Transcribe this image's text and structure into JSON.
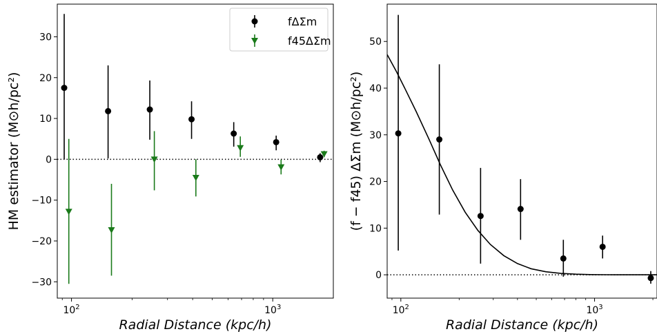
{
  "chart_data": [
    {
      "type": "scatter",
      "xlabel": "Radial Distance (kpc/h)",
      "ylabel": "HM estimator (M⊙h/pc²)",
      "xscale": "log",
      "xlim": [
        85,
        2000
      ],
      "ylim": [
        -34,
        38
      ],
      "x_ticks": [
        {
          "value": 100,
          "label": "10²"
        },
        {
          "value": 1000,
          "label": "10³"
        }
      ],
      "y_ticks": [
        -30,
        -20,
        -10,
        0,
        10,
        20,
        30
      ],
      "reference_line": {
        "y": 0,
        "style": "dotted"
      },
      "legend": {
        "position": "top-right"
      },
      "series": [
        {
          "name": "fΔΣm",
          "color": "#000000",
          "marker": "circle",
          "x": [
            92,
            152,
            245,
            395,
            640,
            1040,
            1720
          ],
          "y": [
            17.5,
            11.8,
            12.2,
            9.8,
            6.3,
            4.2,
            0.5
          ],
          "yerr_low": [
            17.5,
            11.6,
            7.4,
            4.8,
            3.2,
            2.0,
            1.2
          ],
          "yerr_high": [
            18.1,
            11.2,
            7.1,
            4.4,
            2.8,
            1.6,
            1.0
          ]
        },
        {
          "name": "f45ΔΣm",
          "color": "#1a7a1a",
          "marker": "triangle-down",
          "x": [
            97,
            158,
            258,
            415,
            690,
            1100,
            1800
          ],
          "y": [
            -12.8,
            -17.3,
            0,
            -4.5,
            2.8,
            -1.9,
            1.3
          ],
          "yerr_low": [
            17.7,
            11.2,
            7.6,
            4.6,
            2.2,
            1.8,
            0.8
          ],
          "yerr_high": [
            17.8,
            11.3,
            6.9,
            4.5,
            2.8,
            1.8,
            0.8
          ]
        }
      ]
    },
    {
      "type": "scatter",
      "xlabel": "Radial Distance (kpc/h)",
      "ylabel": "(f − f45) ΔΣm (M⊙h/pc²)",
      "xscale": "log",
      "xlim": [
        85,
        2100
      ],
      "ylim": [
        -5,
        58
      ],
      "x_ticks": [
        {
          "value": 100,
          "label": "10²"
        },
        {
          "value": 1000,
          "label": "10³"
        }
      ],
      "y_ticks": [
        0,
        10,
        20,
        30,
        40,
        50
      ],
      "reference_line": {
        "y": 0,
        "style": "dotted"
      },
      "series": [
        {
          "name": "",
          "color": "#000000",
          "marker": "circle",
          "x": [
            97,
            158,
            258,
            415,
            690,
            1100,
            1950
          ],
          "y": [
            30.3,
            29.0,
            12.6,
            14.1,
            3.5,
            6.0,
            -0.7
          ],
          "yerr_low": [
            25.1,
            16.1,
            10.2,
            6.6,
            3.9,
            2.5,
            1.2
          ],
          "yerr_high": [
            25.4,
            16.1,
            10.3,
            6.4,
            4.0,
            2.4,
            1.5
          ]
        }
      ],
      "model_curve": {
        "color": "#000000",
        "x": [
          85,
          95,
          105,
          120,
          140,
          160,
          185,
          215,
          250,
          290,
          340,
          400,
          470,
          560,
          670,
          800,
          950,
          1150,
          1400,
          1700,
          2100
        ],
        "y": [
          47.2,
          43.5,
          39.9,
          35.0,
          29.0,
          23.6,
          18.2,
          13.4,
          9.5,
          6.5,
          4.1,
          2.4,
          1.3,
          0.65,
          0.3,
          0.13,
          0.05,
          0.02,
          0.0,
          0.0,
          0.0
        ]
      }
    }
  ]
}
